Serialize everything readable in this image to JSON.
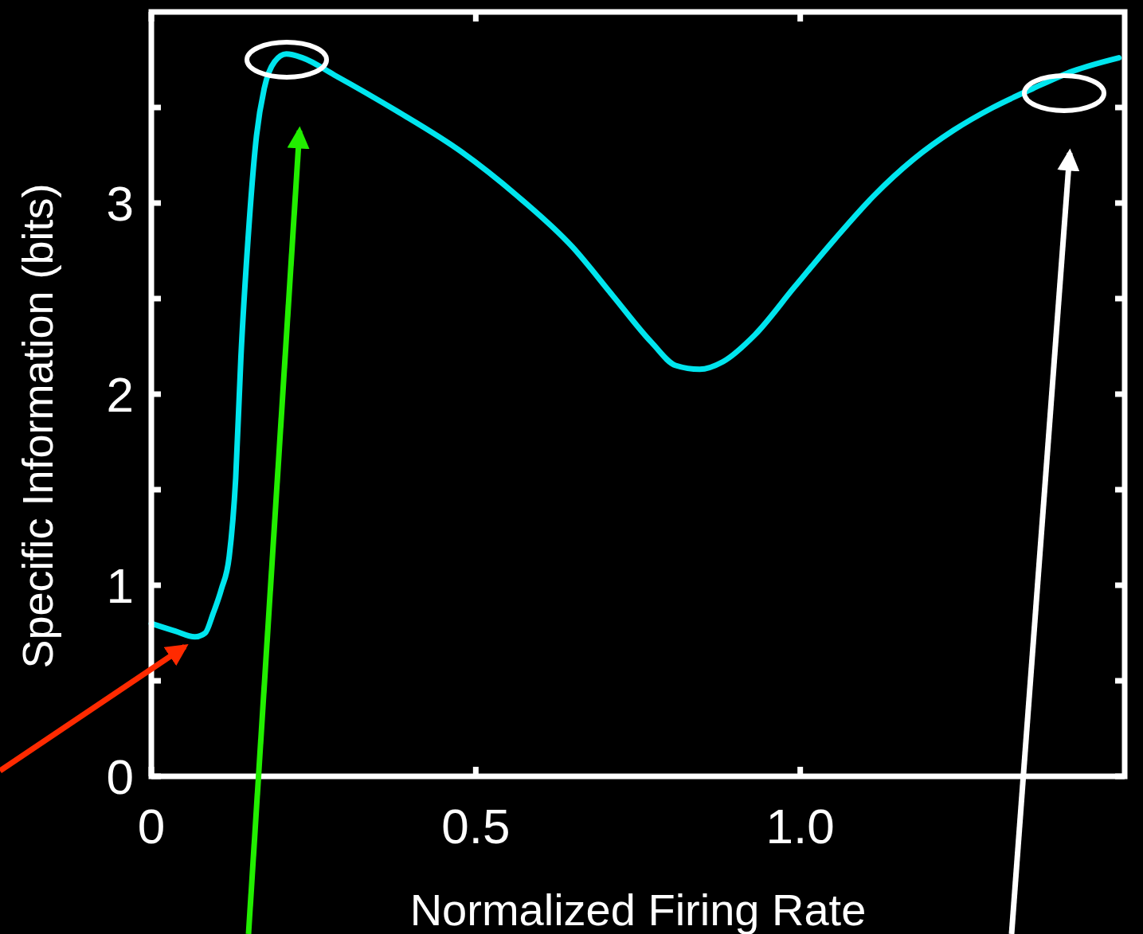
{
  "chart_data": {
    "type": "line",
    "xlabel": "Normalized Firing Rate",
    "ylabel": "Specific Information (bits)",
    "xlim": [
      0,
      1.5
    ],
    "ylim": [
      0,
      4
    ],
    "xticks": [
      0,
      0.5,
      {
        "value": 1,
        "label": "1.0"
      }
    ],
    "yticks": [
      0,
      {
        "value": 0.5,
        "label": null
      },
      1,
      {
        "value": 1.5,
        "label": null
      },
      2,
      {
        "value": 2.5,
        "label": null
      },
      3,
      {
        "value": 3.5,
        "label": null
      }
    ],
    "series": [
      {
        "color": "#00e5ee",
        "x": [
          0.0,
          0.037,
          0.067,
          0.083,
          0.095,
          0.108,
          0.12,
          0.13,
          0.138,
          0.149,
          0.162,
          0.174,
          0.19,
          0.208,
          0.233,
          0.282,
          0.379,
          0.477,
          0.563,
          0.649,
          0.71,
          0.771,
          0.808,
          0.845,
          0.881,
          0.93,
          0.991,
          1.053,
          1.114,
          1.175,
          1.236,
          1.297,
          1.359,
          1.42,
          1.491
        ],
        "values": [
          0.8,
          0.76,
          0.73,
          0.75,
          0.85,
          0.98,
          1.15,
          1.56,
          2.19,
          2.81,
          3.35,
          3.6,
          3.74,
          3.78,
          3.76,
          3.67,
          3.48,
          3.27,
          3.04,
          2.77,
          2.52,
          2.27,
          2.15,
          2.13,
          2.17,
          2.31,
          2.56,
          2.81,
          3.04,
          3.23,
          3.38,
          3.5,
          3.6,
          3.69,
          3.76
        ]
      }
    ],
    "grid": false,
    "marker": "none",
    "line_style": "solid"
  }
}
